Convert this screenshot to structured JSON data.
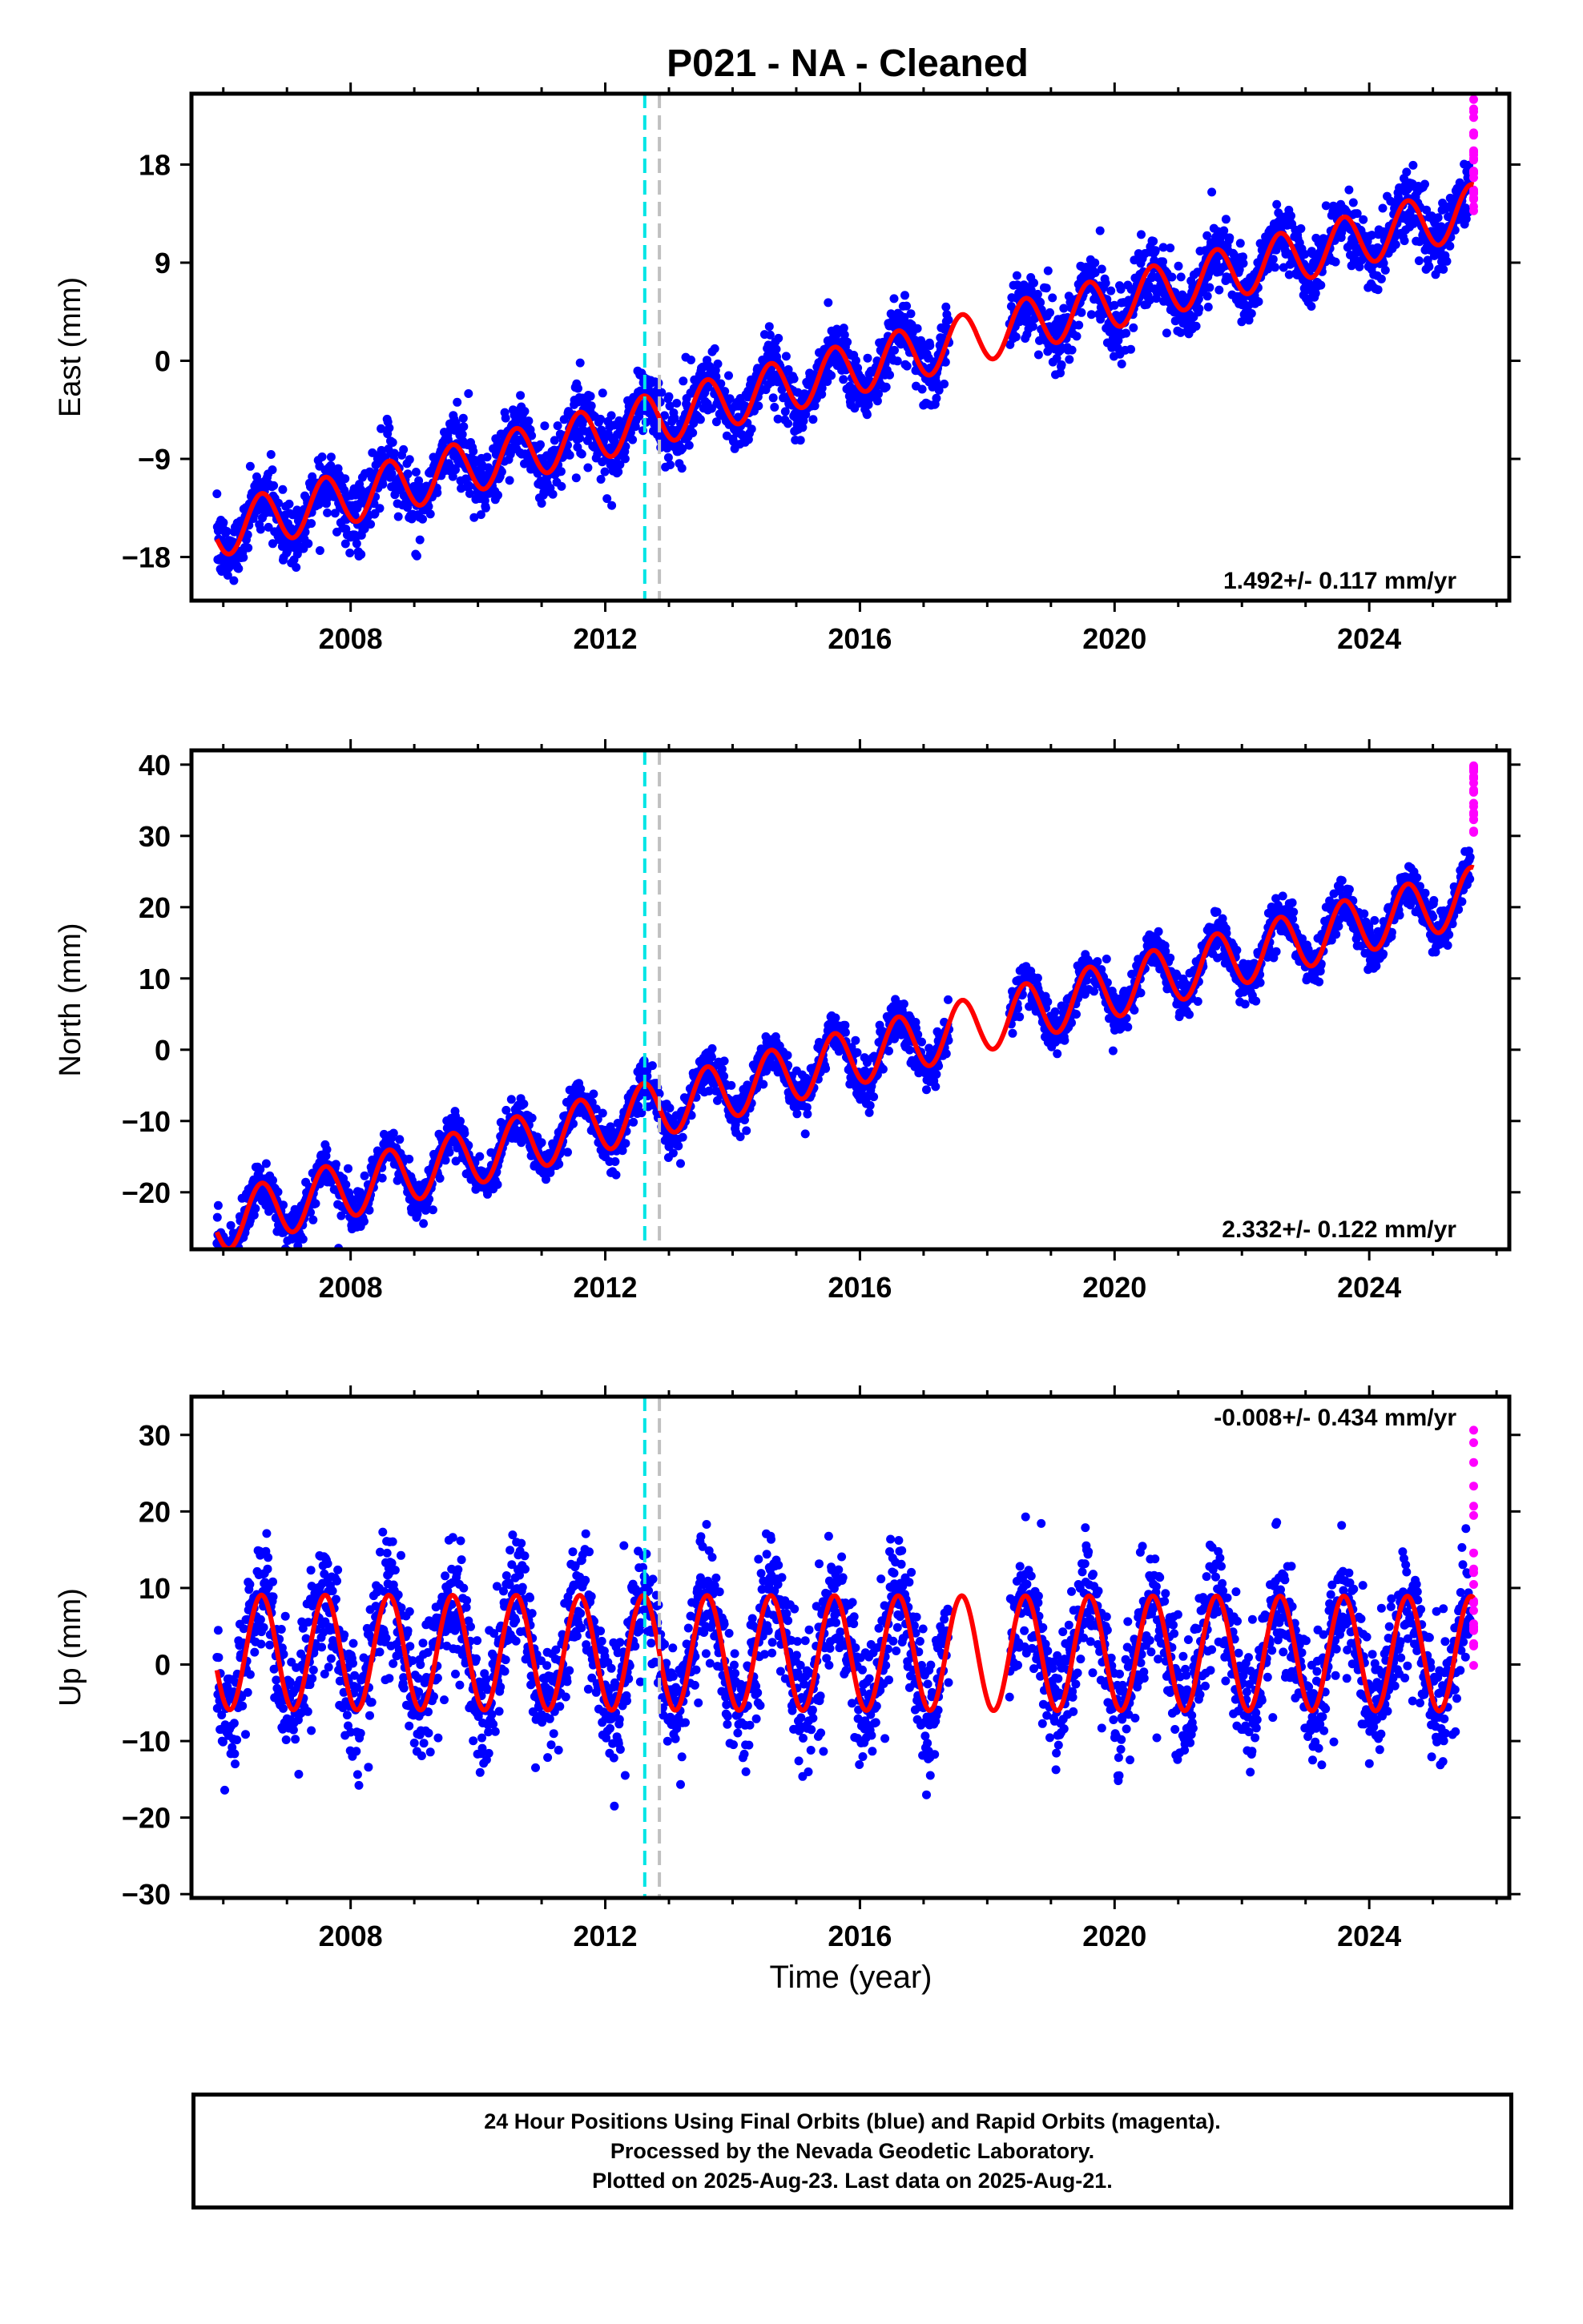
{
  "title": "P021  - NA - Cleaned",
  "colors": {
    "final_orbits": "#0000ff",
    "rapid_orbits": "#ff00ff",
    "model_fit": "#ff0000",
    "event_line_1": "#00e5e5",
    "event_line_2": "#c0c0c0"
  },
  "xlabel": "Time (year)",
  "caption": {
    "line1": "24 Hour Positions Using Final Orbits (blue) and Rapid Orbits (magenta).",
    "line2": "Processed by the Nevada Geodetic Laboratory.",
    "line3": "Plotted on 2025-Aug-23. Last data on 2025-Aug-21."
  },
  "chart_data": [
    {
      "type": "scatter",
      "component": "east",
      "ylabel": "East (mm)",
      "xlim": [
        2005.5,
        2026.2
      ],
      "ylim": [
        -22,
        24.5
      ],
      "xticks": [
        2008,
        2012,
        2016,
        2020,
        2024
      ],
      "yticks": [
        -18,
        -9,
        0,
        9,
        18
      ],
      "velocity_label": "1.492+/- 0.117 mm/yr",
      "velocity_label_position": "bottom-right",
      "velocity": 1.492,
      "offset": -1.0,
      "annual_amplitude": 2.4,
      "data_start": 2005.9,
      "data_end": 2025.64,
      "data_gap": [
        2017.4,
        2018.35
      ],
      "scatter_sd": 1.5,
      "rapid_orbit_range": [
        13,
        24
      ],
      "events": [
        2012.62,
        2012.85
      ]
    },
    {
      "type": "scatter",
      "component": "north",
      "ylabel": "North (mm)",
      "xlim": [
        2005.5,
        2026.2
      ],
      "ylim": [
        -28,
        42
      ],
      "xticks": [
        2008,
        2012,
        2016,
        2020,
        2024
      ],
      "yticks": [
        -20,
        -10,
        0,
        10,
        20,
        30,
        40
      ],
      "velocity_label": "2.332+/- 0.122 mm/yr",
      "velocity_label_position": "bottom-right",
      "velocity": 2.332,
      "offset": -1.5,
      "annual_amplitude": 4.0,
      "data_start": 2005.9,
      "data_end": 2025.64,
      "data_gap": [
        2017.4,
        2018.35
      ],
      "scatter_sd": 1.5,
      "rapid_orbit_range": [
        29,
        40
      ],
      "events": [
        2012.62,
        2012.85
      ]
    },
    {
      "type": "scatter",
      "component": "up",
      "ylabel": "Up (mm)",
      "xlim": [
        2005.5,
        2026.2
      ],
      "ylim": [
        -30.5,
        35
      ],
      "xticks": [
        2008,
        2012,
        2016,
        2020,
        2024
      ],
      "yticks": [
        -30,
        -20,
        -10,
        0,
        10,
        20,
        30
      ],
      "velocity_label": "-0.008+/- 0.434 mm/yr",
      "velocity_label_position": "top-right",
      "velocity": -0.008,
      "offset": 1.5,
      "annual_amplitude": 7.5,
      "data_start": 2005.9,
      "data_end": 2025.64,
      "data_gap": [
        2017.4,
        2018.35
      ],
      "scatter_sd": 4.0,
      "rapid_orbit_range": [
        -4,
        33
      ],
      "events": [
        2012.62,
        2012.85
      ]
    }
  ]
}
